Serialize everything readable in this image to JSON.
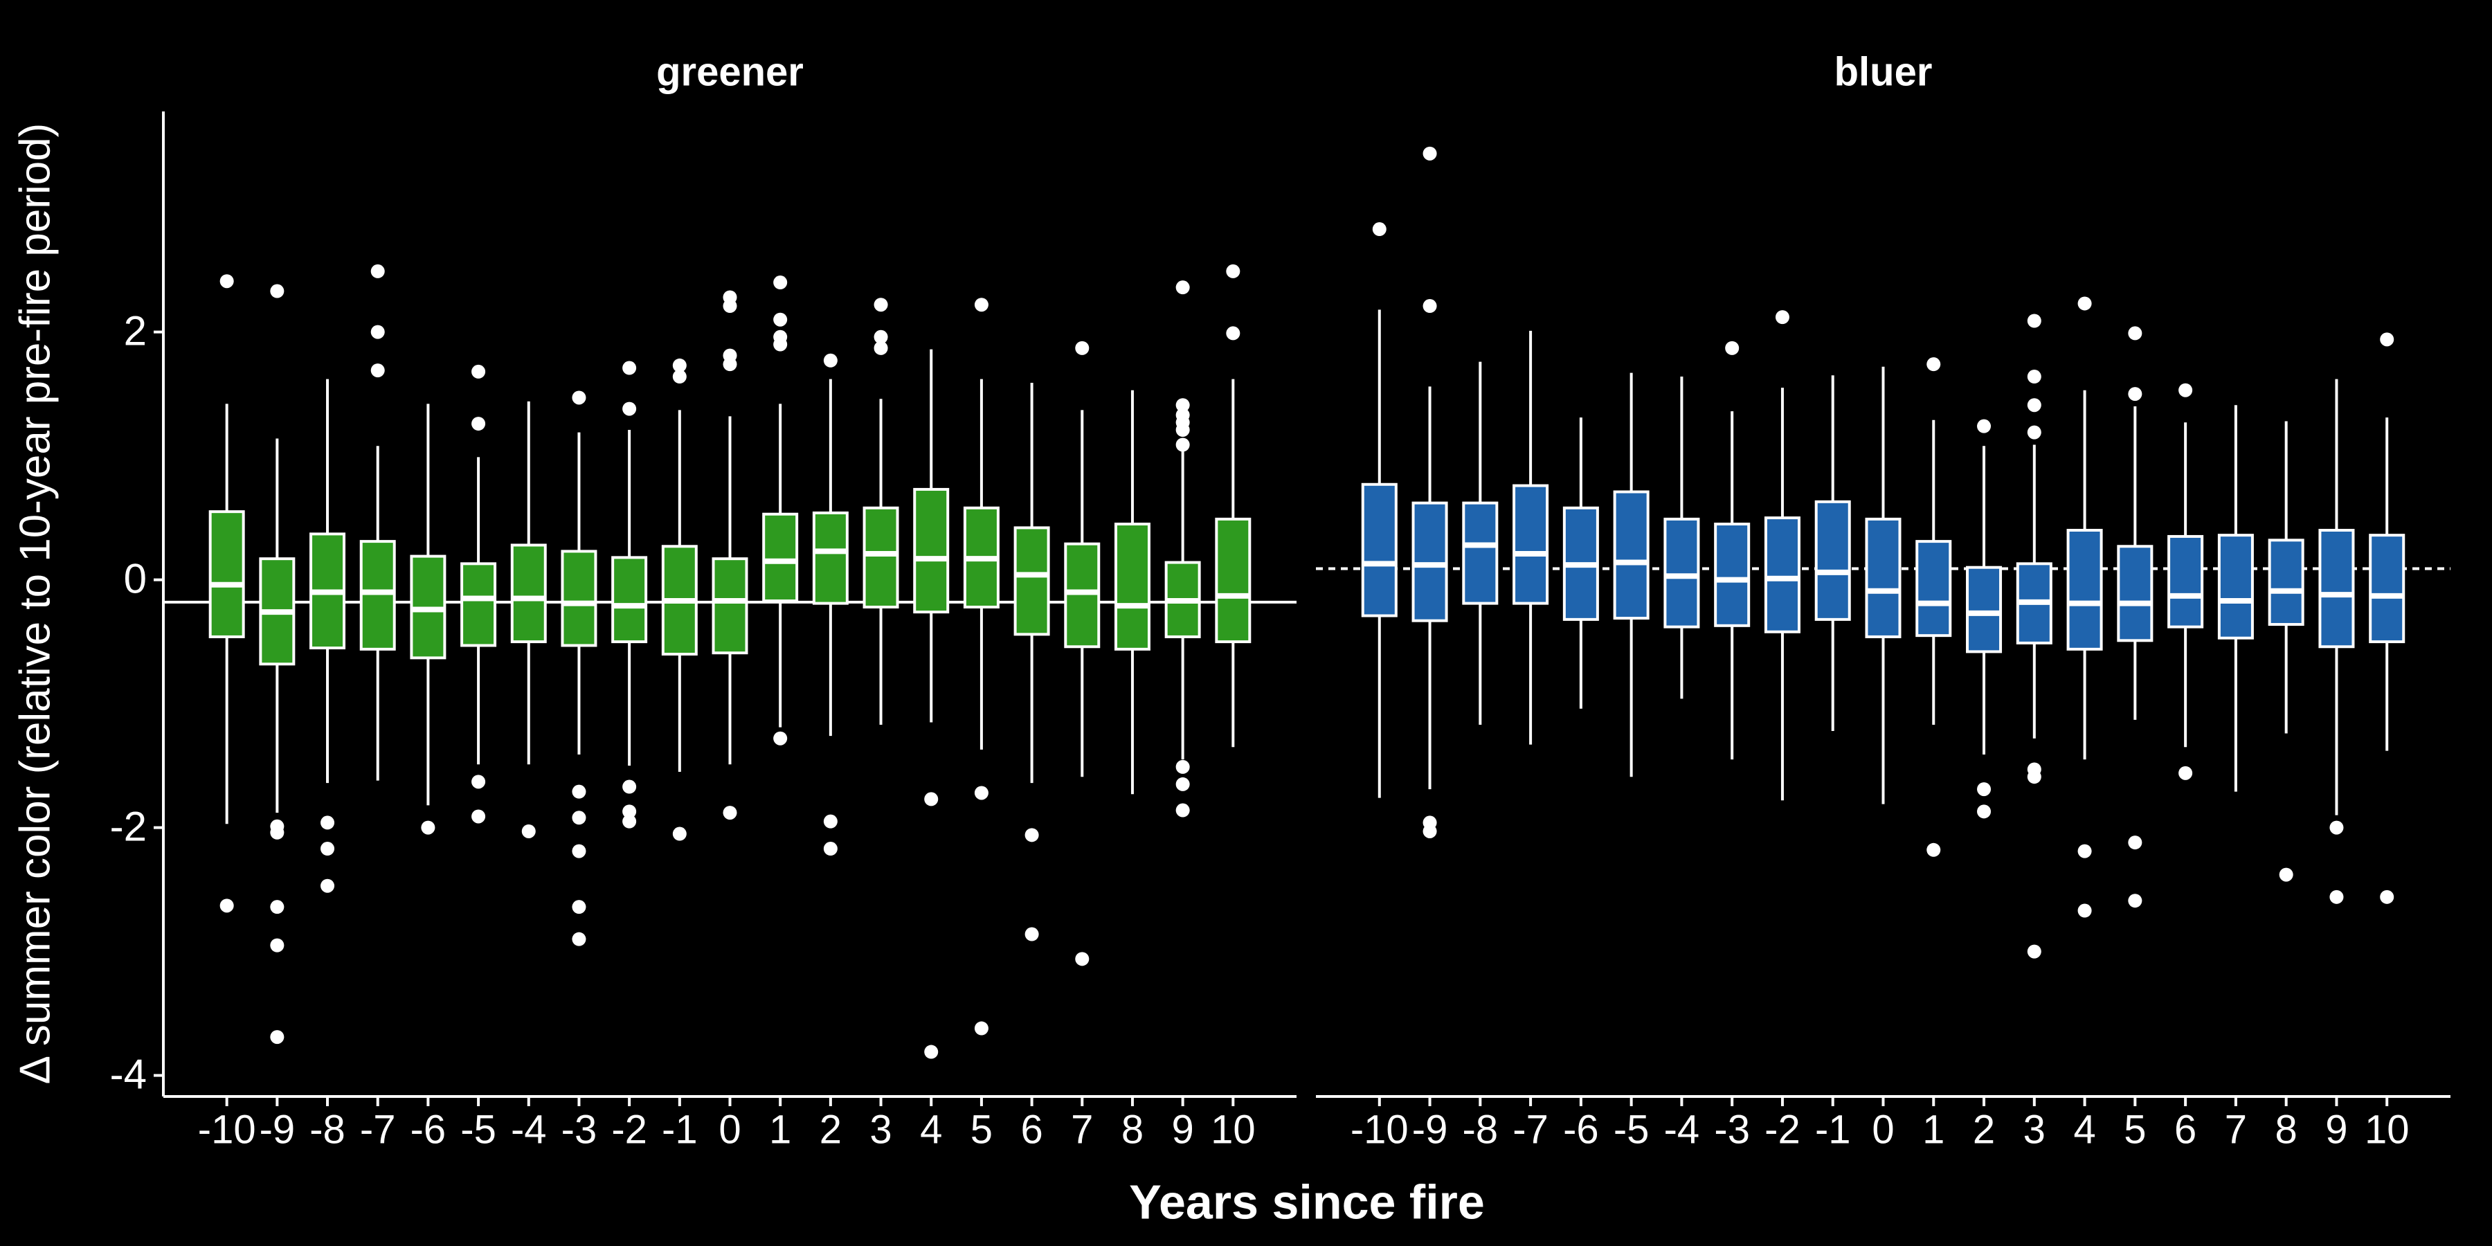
{
  "chart_data": {
    "type": "box",
    "ylabel": "Δ summer color (relative to 10-year pre-fire period)",
    "xlabel": "Years since fire",
    "ylim": [
      -4.17,
      3.78
    ],
    "yticks": [
      -4,
      -2,
      0,
      2
    ],
    "categories": [
      "-10",
      "-9",
      "-8",
      "-7",
      "-6",
      "-5",
      "-4",
      "-3",
      "-2",
      "-1",
      "0",
      "1",
      "2",
      "3",
      "4",
      "5",
      "6",
      "7",
      "8",
      "9",
      "10"
    ],
    "series": [
      {
        "name": "greener",
        "color": "#2e9a1f",
        "reference_line": -0.18,
        "reference_dashed": false,
        "whisker_low": [
          -1.97,
          -1.88,
          -1.64,
          -1.62,
          -1.82,
          -1.49,
          -1.49,
          -1.41,
          -1.5,
          -1.55,
          -1.49,
          -1.19,
          -1.26,
          -1.17,
          -1.15,
          -1.37,
          -1.64,
          -1.59,
          -1.73,
          -1.45,
          -1.35
        ],
        "q1": [
          -0.46,
          -0.68,
          -0.55,
          -0.56,
          -0.63,
          -0.53,
          -0.5,
          -0.53,
          -0.5,
          -0.6,
          -0.59,
          -0.17,
          -0.19,
          -0.22,
          -0.26,
          -0.22,
          -0.44,
          -0.54,
          -0.56,
          -0.46,
          -0.5
        ],
        "median": [
          -0.04,
          -0.26,
          -0.1,
          -0.1,
          -0.24,
          -0.15,
          -0.15,
          -0.19,
          -0.21,
          -0.17,
          -0.17,
          0.15,
          0.23,
          0.21,
          0.17,
          0.17,
          0.04,
          -0.1,
          -0.21,
          -0.17,
          -0.13
        ],
        "q3": [
          0.55,
          0.17,
          0.37,
          0.31,
          0.19,
          0.13,
          0.28,
          0.23,
          0.18,
          0.27,
          0.17,
          0.53,
          0.54,
          0.58,
          0.73,
          0.58,
          0.42,
          0.29,
          0.45,
          0.14,
          0.49
        ],
        "whisker_high": [
          1.42,
          1.14,
          1.62,
          1.08,
          1.42,
          0.99,
          1.44,
          1.19,
          1.21,
          1.37,
          1.32,
          1.42,
          1.62,
          1.46,
          1.86,
          1.62,
          1.59,
          1.37,
          1.53,
          1.06,
          1.62
        ],
        "outliers": [
          [
            2.41,
            -2.63
          ],
          [
            2.33,
            -1.99,
            -2.04,
            -2.64,
            -2.95,
            -3.69
          ],
          [
            -1.96,
            -2.17,
            -2.47
          ],
          [
            2.49,
            2.0,
            1.69
          ],
          [
            -2.0
          ],
          [
            1.68,
            1.26,
            -1.63,
            -1.91
          ],
          [
            -2.03
          ],
          [
            1.47,
            -1.71,
            -1.92,
            -2.19,
            -2.64,
            -2.9
          ],
          [
            1.71,
            1.38,
            -1.67,
            -1.87,
            -1.95
          ],
          [
            1.73,
            1.64,
            -2.05
          ],
          [
            2.28,
            2.21,
            1.81,
            1.74,
            -1.88
          ],
          [
            2.4,
            2.1,
            1.96,
            1.9,
            -1.28
          ],
          [
            1.77,
            -1.95,
            -2.17
          ],
          [
            2.22,
            1.96,
            1.87
          ],
          [
            -1.77,
            -3.81
          ],
          [
            2.22,
            -1.72,
            -3.62
          ],
          [
            -2.06,
            -2.86
          ],
          [
            1.87,
            -3.06
          ],
          [],
          [
            2.36,
            1.41,
            1.33,
            1.27,
            1.21,
            1.09,
            -1.51,
            -1.65,
            -1.86
          ],
          [
            2.49,
            1.99
          ]
        ]
      },
      {
        "name": "bluer",
        "color": "#1f64ad",
        "reference_line": 0.09,
        "reference_dashed": true,
        "whisker_low": [
          -1.76,
          -1.69,
          -1.17,
          -1.33,
          -1.04,
          -1.59,
          -0.96,
          -1.45,
          -1.78,
          -1.22,
          -1.81,
          -1.17,
          -1.41,
          -1.28,
          -1.45,
          -1.13,
          -1.35,
          -1.71,
          -1.24,
          -1.9,
          -1.38
        ],
        "q1": [
          -0.29,
          -0.33,
          -0.19,
          -0.19,
          -0.32,
          -0.31,
          -0.38,
          -0.37,
          -0.42,
          -0.32,
          -0.46,
          -0.45,
          -0.58,
          -0.51,
          -0.56,
          -0.49,
          -0.38,
          -0.47,
          -0.36,
          -0.54,
          -0.5
        ],
        "median": [
          0.13,
          0.12,
          0.28,
          0.21,
          0.12,
          0.14,
          0.03,
          0.0,
          0.01,
          0.06,
          -0.09,
          -0.19,
          -0.27,
          -0.18,
          -0.19,
          -0.19,
          -0.13,
          -0.17,
          -0.09,
          -0.12,
          -0.13
        ],
        "q3": [
          0.77,
          0.62,
          0.62,
          0.76,
          0.58,
          0.71,
          0.49,
          0.45,
          0.5,
          0.63,
          0.49,
          0.31,
          0.1,
          0.13,
          0.4,
          0.27,
          0.35,
          0.36,
          0.32,
          0.4,
          0.36
        ],
        "whisker_high": [
          2.18,
          1.56,
          1.76,
          2.01,
          1.31,
          1.67,
          1.64,
          1.36,
          1.55,
          1.65,
          1.72,
          1.29,
          1.08,
          1.09,
          1.53,
          1.4,
          1.27,
          1.41,
          1.28,
          1.62,
          1.31
        ],
        "outliers": [
          [
            2.83
          ],
          [
            3.44,
            2.21,
            -1.96,
            -2.03
          ],
          [],
          [],
          [],
          [],
          [],
          [
            1.87
          ],
          [
            2.12
          ],
          [],
          [],
          [
            1.74,
            -2.18
          ],
          [
            1.24,
            -1.69,
            -1.87
          ],
          [
            2.09,
            1.64,
            1.41,
            1.19,
            -1.53,
            -1.59,
            -3.0
          ],
          [
            2.23,
            -2.19,
            -2.67
          ],
          [
            1.99,
            1.5,
            -2.12,
            -2.59
          ],
          [
            1.53,
            -1.56
          ],
          [],
          [
            -2.38
          ],
          [
            -2.0,
            -2.56
          ],
          [
            1.94,
            -2.56
          ]
        ]
      }
    ]
  }
}
